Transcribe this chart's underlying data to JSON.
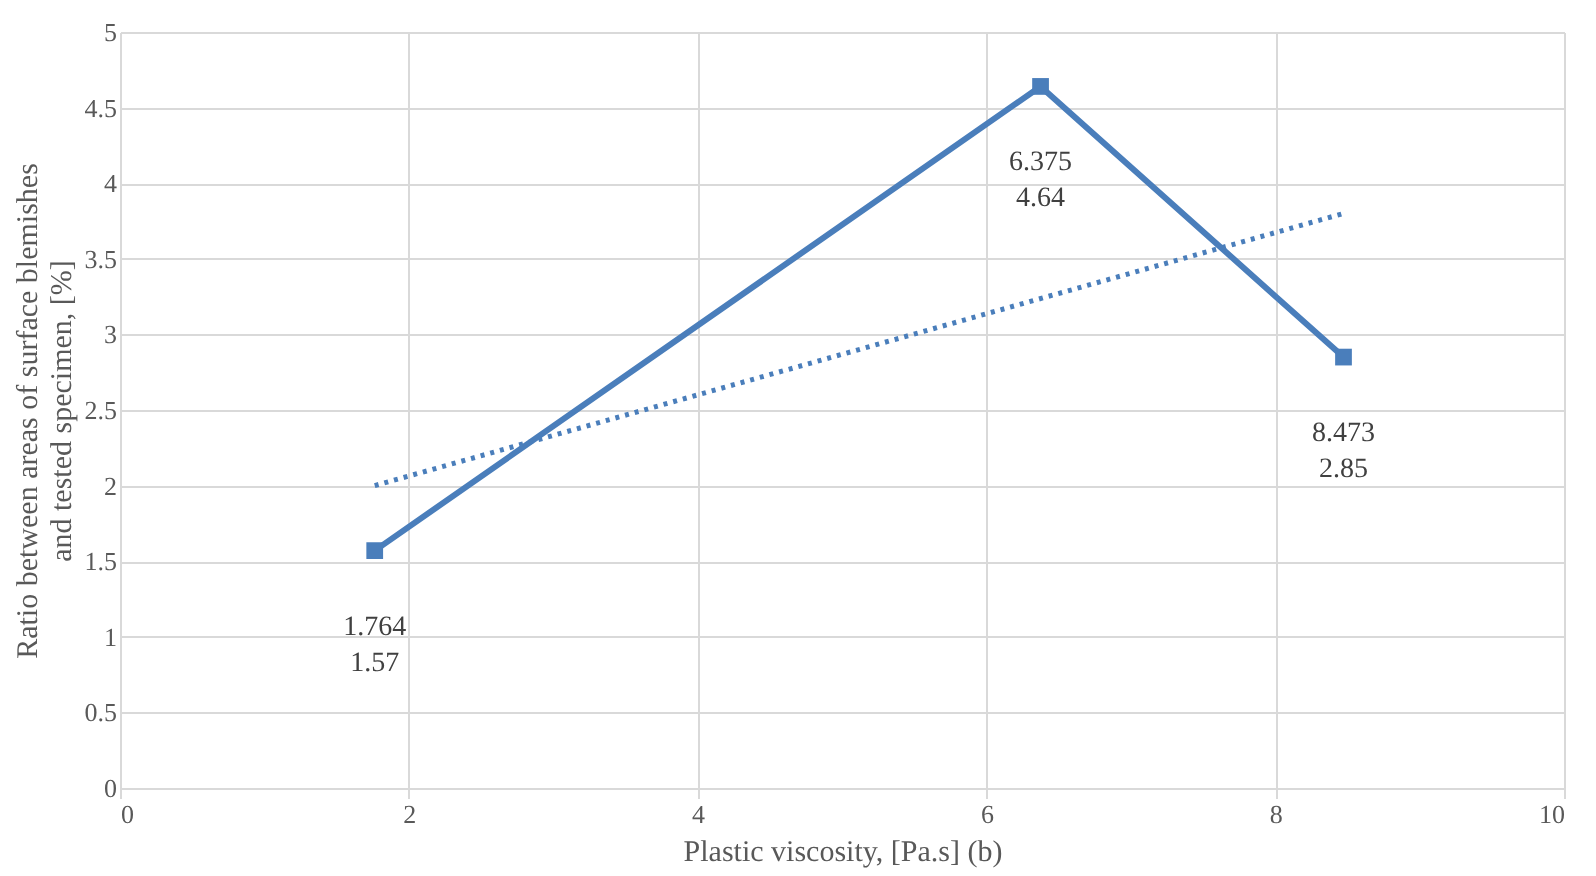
{
  "chart_data": {
    "type": "line",
    "xlabel": "Plastic viscosity, [Pa.s] (b)",
    "ylabel": "Ratio between areas of surface blemishes\nand tested specimen, [%]",
    "x": [
      1.764,
      6.375,
      8.473
    ],
    "series": [
      {
        "color": "#4a7ebb",
        "values": [
          1.57,
          4.64,
          2.85
        ],
        "marker": "square",
        "line_style": "solid"
      },
      {
        "type": "line",
        "x": [
          1.764,
          8.473
        ],
        "values": [
          2.0,
          3.8
        ],
        "color": "#4a7ebb",
        "marker": "none",
        "line_style": "dotted"
      }
    ],
    "annotations": [
      {
        "text": "1.764\n1.57",
        "x": 1.764,
        "y": 1.57
      },
      {
        "text": "6.375\n4.64",
        "x": 6.375,
        "y": 4.64
      },
      {
        "text": "8.473\n2.85",
        "x": 8.473,
        "y": 2.85
      }
    ],
    "xlim": [
      0,
      10
    ],
    "xticks": [
      0,
      2,
      4,
      6,
      8,
      10
    ],
    "ylim": [
      0,
      5
    ],
    "yticks": [
      0,
      0.5,
      1,
      1.5,
      2,
      2.5,
      3,
      3.5,
      4,
      4.5,
      5
    ],
    "grid": true
  }
}
